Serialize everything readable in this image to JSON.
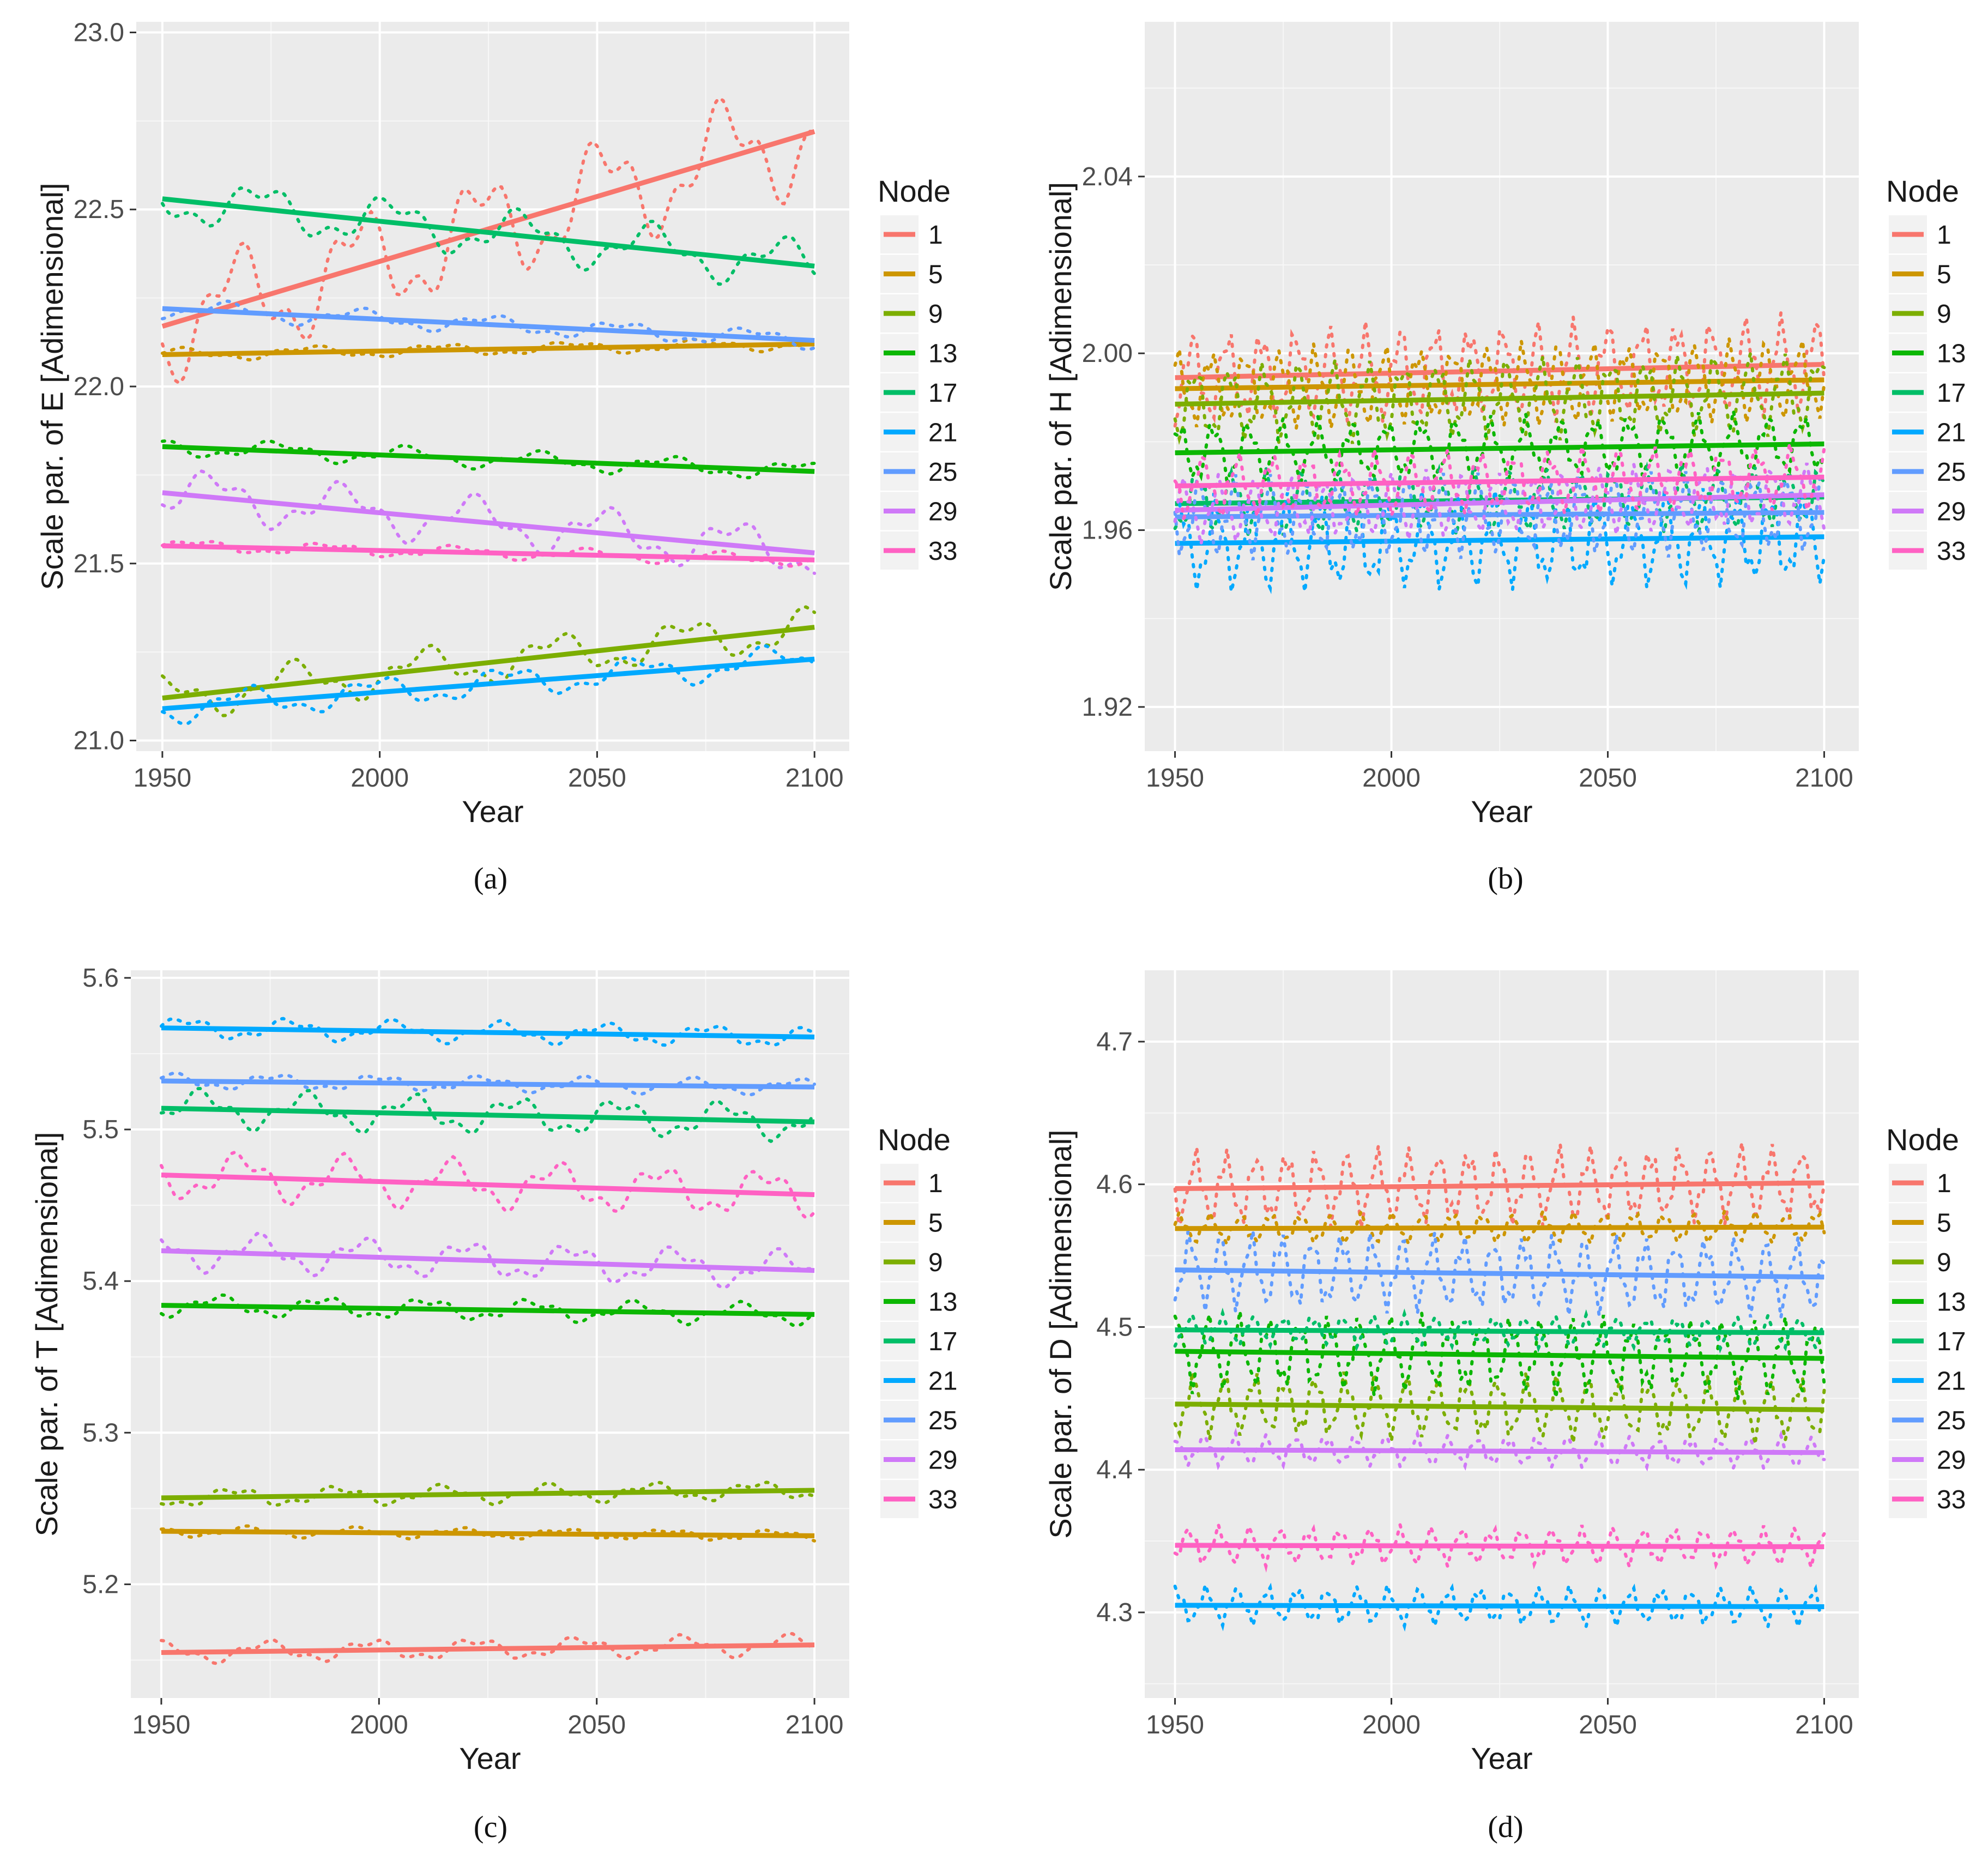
{
  "figure": {
    "panel_labels": [
      "(a)",
      "(b)",
      "(c)",
      "(d)"
    ]
  },
  "chart_data": [
    {
      "type": "line",
      "panel": "(a)",
      "xlabel": "Year",
      "ylabel": "Scale par. of E [Adimensional]",
      "xlim": [
        1944,
        2108
      ],
      "ylim": [
        20.97,
        23.03
      ],
      "xticks": [
        1950,
        2000,
        2050,
        2100
      ],
      "yticks": [
        21.0,
        21.5,
        22.0,
        22.5,
        23.0
      ],
      "ytick_labels": [
        "21.0",
        "21.5",
        "22.0",
        "22.5",
        "23.0"
      ],
      "legend_title": "Node",
      "series": [
        {
          "name": "1",
          "color": "#F8766D",
          "trend": [
            22.17,
            22.72
          ],
          "amp": 0.18,
          "period": 28
        },
        {
          "name": "5",
          "color": "#CD9600",
          "trend": [
            22.09,
            22.12
          ],
          "amp": 0.02,
          "period": 30
        },
        {
          "name": "9",
          "color": "#7CAE00",
          "trend": [
            21.12,
            21.32
          ],
          "amp": 0.07,
          "period": 30
        },
        {
          "name": "13",
          "color": "#0CB702",
          "trend": [
            21.83,
            21.76
          ],
          "amp": 0.03,
          "period": 30
        },
        {
          "name": "17",
          "color": "#00BE67",
          "trend": [
            22.53,
            22.34
          ],
          "amp": 0.08,
          "period": 30
        },
        {
          "name": "21",
          "color": "#00A9FF",
          "trend": [
            21.09,
            21.23
          ],
          "amp": 0.05,
          "period": 30
        },
        {
          "name": "25",
          "color": "#619CFF",
          "trend": [
            22.22,
            22.13
          ],
          "amp": 0.03,
          "period": 30
        },
        {
          "name": "29",
          "color": "#CF79F8",
          "trend": [
            21.7,
            21.53
          ],
          "amp": 0.08,
          "period": 30
        },
        {
          "name": "33",
          "color": "#FF61C3",
          "trend": [
            21.55,
            21.51
          ],
          "amp": 0.02,
          "period": 30
        }
      ]
    },
    {
      "type": "line",
      "panel": "(b)",
      "xlabel": "Year",
      "ylabel": "Scale par. of H [Adimensional]",
      "xlim": [
        1943,
        2108
      ],
      "ylim": [
        1.91,
        2.075
      ],
      "xticks": [
        1950,
        2000,
        2050,
        2100
      ],
      "yticks": [
        1.92,
        1.96,
        2.0,
        2.04
      ],
      "ytick_labels": [
        "1.92",
        "1.96",
        "2.00",
        "2.04"
      ],
      "legend_title": "Node",
      "series": [
        {
          "name": "1",
          "color": "#F8766D",
          "trend": [
            1.9945,
            1.9975
          ],
          "amp": 0.012,
          "period": 8
        },
        {
          "name": "5",
          "color": "#CD9600",
          "trend": [
            1.992,
            1.994
          ],
          "amp": 0.01,
          "period": 8
        },
        {
          "name": "9",
          "color": "#7CAE00",
          "trend": [
            1.9885,
            1.991
          ],
          "amp": 0.01,
          "period": 8
        },
        {
          "name": "13",
          "color": "#0CB702",
          "trend": [
            1.9775,
            1.9795
          ],
          "amp": 0.008,
          "period": 8
        },
        {
          "name": "17",
          "color": "#00BE67",
          "trend": [
            1.966,
            1.9675
          ],
          "amp": 0.008,
          "period": 8
        },
        {
          "name": "21",
          "color": "#00A9FF",
          "trend": [
            1.957,
            1.9585
          ],
          "amp": 0.012,
          "period": 8
        },
        {
          "name": "25",
          "color": "#619CFF",
          "trend": [
            1.963,
            1.964
          ],
          "amp": 0.01,
          "period": 8
        },
        {
          "name": "29",
          "color": "#CF79F8",
          "trend": [
            1.9645,
            1.968
          ],
          "amp": 0.008,
          "period": 8
        },
        {
          "name": "33",
          "color": "#FF61C3",
          "trend": [
            1.97,
            1.972
          ],
          "amp": 0.008,
          "period": 8
        }
      ]
    },
    {
      "type": "line",
      "panel": "(c)",
      "xlabel": "Year",
      "ylabel": "Scale par. of T [Adimensional]",
      "xlim": [
        1943,
        2108
      ],
      "ylim": [
        5.125,
        5.605
      ],
      "xticks": [
        1950,
        2000,
        2050,
        2100
      ],
      "yticks": [
        5.2,
        5.3,
        5.4,
        5.5,
        5.6
      ],
      "ytick_labels": [
        "5.2",
        "5.3",
        "5.4",
        "5.5",
        "5.6"
      ],
      "legend_title": "Node",
      "series": [
        {
          "name": "1",
          "color": "#F8766D",
          "trend": [
            5.155,
            5.16
          ],
          "amp": 0.008,
          "period": 24
        },
        {
          "name": "5",
          "color": "#CD9600",
          "trend": [
            5.235,
            5.232
          ],
          "amp": 0.004,
          "period": 24
        },
        {
          "name": "9",
          "color": "#7CAE00",
          "trend": [
            5.257,
            5.262
          ],
          "amp": 0.007,
          "period": 24
        },
        {
          "name": "13",
          "color": "#0CB702",
          "trend": [
            5.384,
            5.378
          ],
          "amp": 0.008,
          "period": 24
        },
        {
          "name": "17",
          "color": "#00BE67",
          "trend": [
            5.514,
            5.505
          ],
          "amp": 0.014,
          "period": 24
        },
        {
          "name": "21",
          "color": "#00A9FF",
          "trend": [
            5.567,
            5.561
          ],
          "amp": 0.008,
          "period": 24
        },
        {
          "name": "25",
          "color": "#619CFF",
          "trend": [
            5.532,
            5.528
          ],
          "amp": 0.006,
          "period": 24
        },
        {
          "name": "29",
          "color": "#CF79F8",
          "trend": [
            5.42,
            5.407
          ],
          "amp": 0.014,
          "period": 24
        },
        {
          "name": "33",
          "color": "#FF61C3",
          "trend": [
            5.47,
            5.457
          ],
          "amp": 0.018,
          "period": 24
        }
      ]
    },
    {
      "type": "line",
      "panel": "(d)",
      "xlabel": "Year",
      "ylabel": "Scale par. of D [Adimensional]",
      "xlim": [
        1943,
        2108
      ],
      "ylim": [
        4.24,
        4.75
      ],
      "xticks": [
        1950,
        2000,
        2050,
        2100
      ],
      "yticks": [
        4.3,
        4.4,
        4.5,
        4.6,
        4.7
      ],
      "ytick_labels": [
        "4.3",
        "4.4",
        "4.5",
        "4.6",
        "4.7"
      ],
      "legend_title": "Node",
      "series": [
        {
          "name": "1",
          "color": "#F8766D",
          "trend": [
            4.597,
            4.601
          ],
          "amp": 0.03,
          "period": 7
        },
        {
          "name": "5",
          "color": "#CD9600",
          "trend": [
            4.569,
            4.57
          ],
          "amp": 0.012,
          "period": 7
        },
        {
          "name": "9",
          "color": "#7CAE00",
          "trend": [
            4.446,
            4.442
          ],
          "amp": 0.025,
          "period": 7
        },
        {
          "name": "13",
          "color": "#0CB702",
          "trend": [
            4.483,
            4.478
          ],
          "amp": 0.03,
          "period": 7
        },
        {
          "name": "17",
          "color": "#00BE67",
          "trend": [
            4.498,
            4.496
          ],
          "amp": 0.012,
          "period": 7
        },
        {
          "name": "21",
          "color": "#00A9FF",
          "trend": [
            4.305,
            4.304
          ],
          "amp": 0.015,
          "period": 7
        },
        {
          "name": "25",
          "color": "#619CFF",
          "trend": [
            4.54,
            4.535
          ],
          "amp": 0.03,
          "period": 7
        },
        {
          "name": "29",
          "color": "#CF79F8",
          "trend": [
            4.414,
            4.412
          ],
          "amp": 0.012,
          "period": 7
        },
        {
          "name": "33",
          "color": "#FF61C3",
          "trend": [
            4.347,
            4.346
          ],
          "amp": 0.015,
          "period": 7
        }
      ]
    }
  ]
}
